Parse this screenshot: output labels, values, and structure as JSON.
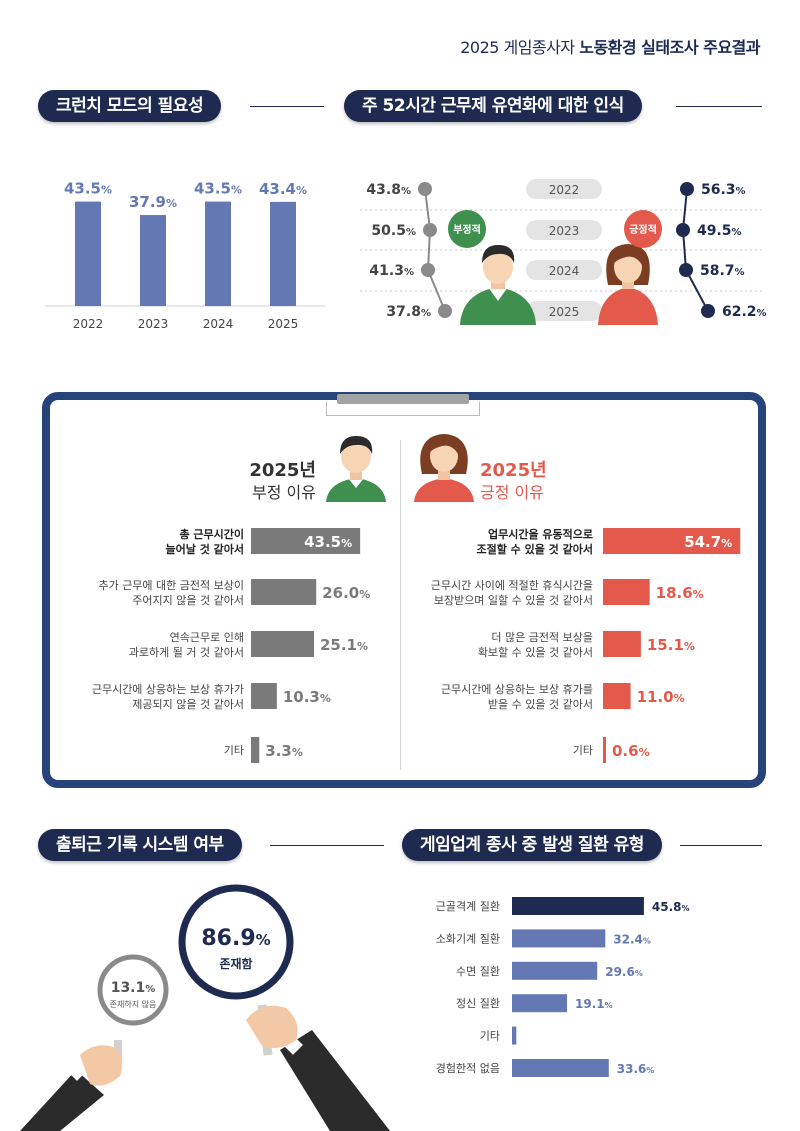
{
  "header": {
    "title_prefix": "2025 게임종사자",
    "title_bold": "노동환경 실태조사 주요결과"
  },
  "colors": {
    "navy": "#1e2a4f",
    "bar_blue": "#6478b4",
    "gray": "#7a7a7a",
    "red": "#e35a4c",
    "panel_border": "#26437a"
  },
  "crunch": {
    "title": "크런치 모드의 필요성",
    "chart_data": {
      "type": "bar",
      "categories": [
        "2022",
        "2023",
        "2024",
        "2025"
      ],
      "values": [
        43.5,
        37.9,
        43.5,
        43.4
      ],
      "value_labels": [
        "43.5",
        "37.9",
        "43.5",
        "43.4"
      ],
      "unit": "%",
      "ylim": [
        0,
        50
      ]
    }
  },
  "workhours": {
    "title": "주 52시간 근무제 유연화에 대한 인식",
    "negative_badge": "부정적",
    "positive_badge": "긍정적",
    "chart_data": {
      "type": "line",
      "categories": [
        "2022",
        "2023",
        "2024",
        "2025"
      ],
      "series": [
        {
          "name": "부정적",
          "values": [
            43.8,
            50.5,
            41.3,
            37.8
          ],
          "labels": [
            "43.8",
            "50.5",
            "41.3",
            "37.8"
          ]
        },
        {
          "name": "긍정적",
          "values": [
            56.3,
            49.5,
            58.7,
            62.2
          ],
          "labels": [
            "56.3",
            "49.5",
            "58.7",
            "62.2"
          ]
        }
      ],
      "unit": "%"
    }
  },
  "reasons": {
    "negative": {
      "year": "2025년",
      "subtitle": "부정 이유",
      "chart_data": {
        "type": "bar",
        "orientation": "horizontal",
        "categories": [
          "총 근무시간이\n늘어날 것 같아서",
          "추가 근무에 대한 금전적 보상이\n주어지지 않을 것 같아서",
          "연속근무로 인해\n과로하게 될 거 것 같아서",
          "근무시간에 상응하는 보상 휴가가\n제공되지 않을 것 같아서",
          "기타"
        ],
        "values": [
          43.5,
          26.0,
          25.1,
          10.3,
          3.3
        ],
        "value_labels": [
          "43.5",
          "26.0",
          "25.1",
          "10.3",
          "3.3"
        ],
        "unit": "%",
        "xlim": [
          0,
          55
        ]
      }
    },
    "positive": {
      "year": "2025년",
      "subtitle": "긍정 이유",
      "chart_data": {
        "type": "bar",
        "orientation": "horizontal",
        "categories": [
          "업무시간을 유동적으로\n조절할 수 있을 것 같아서",
          "근무시간 사이에 적절한 휴식시간을\n보장받으며 일할 수 있을 것 같아서",
          "더 많은 금전적 보상을\n확보할 수 있을 것 같아서",
          "근무시간에 상응하는 보상 휴가를\n받을 수 있을 것 같아서",
          "기타"
        ],
        "values": [
          54.7,
          18.6,
          15.1,
          11.0,
          0.6
        ],
        "value_labels": [
          "54.7",
          "18.6",
          "15.1",
          "11.0",
          "0.6"
        ],
        "unit": "%",
        "xlim": [
          0,
          55
        ]
      }
    }
  },
  "commute": {
    "title": "출퇴근 기록 시스템 여부",
    "chart_data": {
      "type": "pie",
      "labels": [
        "존재함",
        "존재하지 않음"
      ],
      "values": [
        86.9,
        13.1
      ],
      "value_labels": [
        "86.9",
        "13.1"
      ],
      "unit": "%"
    }
  },
  "disease": {
    "title": "게임업계 종사 중 발생 질환 유형",
    "chart_data": {
      "type": "bar",
      "orientation": "horizontal",
      "categories": [
        "근골격계 질환",
        "소화기계 질환",
        "수면 질환",
        "정신 질환",
        "기타",
        "경험한적 없음"
      ],
      "values": [
        45.8,
        32.4,
        29.6,
        19.1,
        1.5,
        33.6
      ],
      "value_labels": [
        "45.8",
        "32.4",
        "29.6",
        "19.1",
        "",
        "33.6"
      ],
      "unit": "%",
      "xlim": [
        0,
        50
      ]
    }
  }
}
